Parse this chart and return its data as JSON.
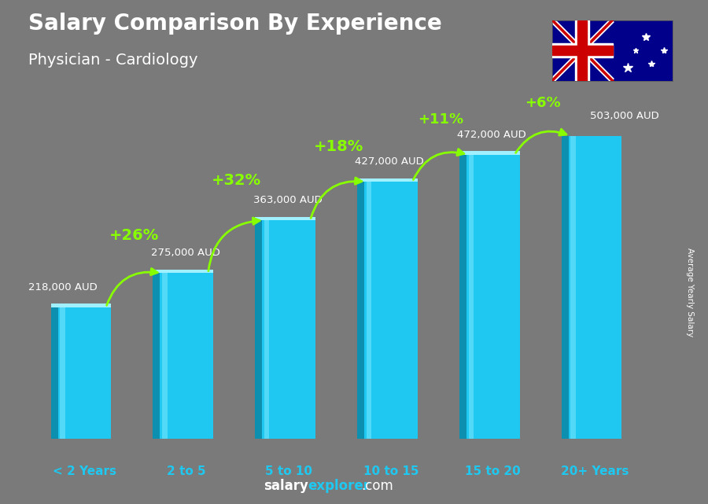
{
  "title": "Salary Comparison By Experience",
  "subtitle": "Physician - Cardiology",
  "categories": [
    "< 2 Years",
    "2 to 5",
    "5 to 10",
    "10 to 15",
    "15 to 20",
    "20+ Years"
  ],
  "values": [
    218000,
    275000,
    363000,
    427000,
    472000,
    503000
  ],
  "labels": [
    "218,000 AUD",
    "275,000 AUD",
    "363,000 AUD",
    "427,000 AUD",
    "472,000 AUD",
    "503,000 AUD"
  ],
  "pct_changes": [
    "+26%",
    "+32%",
    "+18%",
    "+11%",
    "+6%"
  ],
  "bar_color_face": "#1ec8f0",
  "bar_color_left": "#0d8fb0",
  "bar_color_highlight": "#7de8ff",
  "bg_color": "#7a7a7a",
  "title_color": "#ffffff",
  "label_color": "#ffffff",
  "pct_color": "#88ff00",
  "cat_color": "#1ec8f0",
  "ylabel": "Average Yearly Salary",
  "footer_salary": "salary",
  "footer_explorer": "explorer",
  "footer_com": ".com"
}
